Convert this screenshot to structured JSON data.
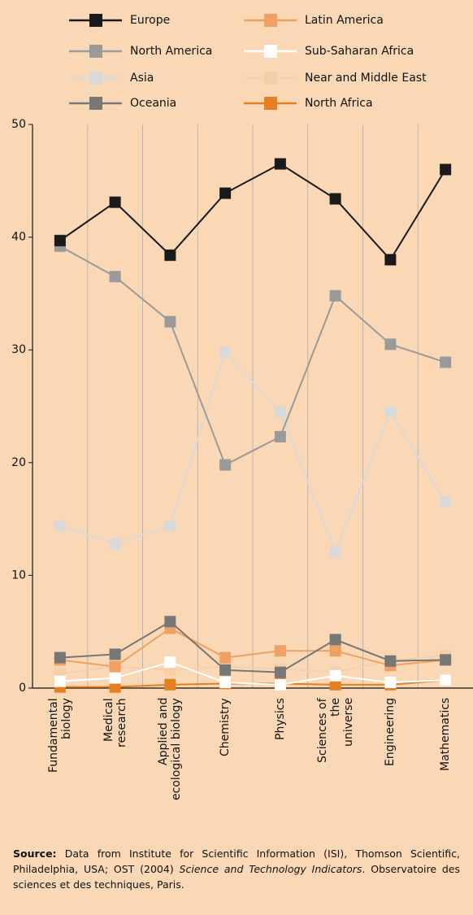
{
  "chart_data": {
    "type": "line",
    "categories": [
      "Fundamental biology",
      "Medical research",
      "Applied and ecological biology",
      "Chemistry",
      "Physics",
      "Sciences of the universe",
      "Engineering",
      "Mathematics"
    ],
    "series": [
      {
        "name": "Europe",
        "color": "#1a1a1a",
        "values": [
          39.7,
          43.1,
          38.4,
          43.9,
          46.5,
          43.4,
          38.0,
          46.0
        ]
      },
      {
        "name": "North America",
        "color": "#9a9a9a",
        "values": [
          39.2,
          36.5,
          32.5,
          19.8,
          22.3,
          34.8,
          30.5,
          28.9
        ]
      },
      {
        "name": "Asia",
        "color": "#d9d9d9",
        "values": [
          14.4,
          12.8,
          14.4,
          29.8,
          24.5,
          12.1,
          24.5,
          16.5
        ]
      },
      {
        "name": "Oceania",
        "color": "#777777",
        "values": [
          2.7,
          3.0,
          5.9,
          1.6,
          1.4,
          4.3,
          2.4,
          2.5
        ]
      },
      {
        "name": "Latin America",
        "color": "#f0a060",
        "values": [
          2.5,
          1.9,
          5.3,
          2.7,
          3.3,
          3.3,
          2.0,
          2.5
        ]
      },
      {
        "name": "Sub-Saharan Africa",
        "color": "#ffffff",
        "values": [
          0.6,
          0.9,
          2.3,
          0.5,
          0.3,
          1.1,
          0.5,
          0.7
        ]
      },
      {
        "name": "Near and Middle East",
        "color": "#f5cfa8",
        "values": [
          1.3,
          1.9,
          1.6,
          1.9,
          1.7,
          1.4,
          2.4,
          2.9
        ]
      },
      {
        "name": "North Africa",
        "color": "#e67e22",
        "values": [
          0.1,
          0.1,
          0.3,
          0.4,
          0.4,
          0.3,
          0.3,
          0.7
        ]
      }
    ],
    "ylim": [
      0,
      50
    ],
    "yticks": [
      0,
      10,
      20,
      30,
      40,
      50
    ],
    "grid": true
  },
  "source": {
    "label": "Source:",
    "text1": "Data from Institute for Scientific Information (ISI), Thomson Scientific, Philadelphia, USA; OST (2004)",
    "italic": "Science and Technology Indicators",
    "text2": ". Observatoire des sciences et des techniques, Paris."
  }
}
